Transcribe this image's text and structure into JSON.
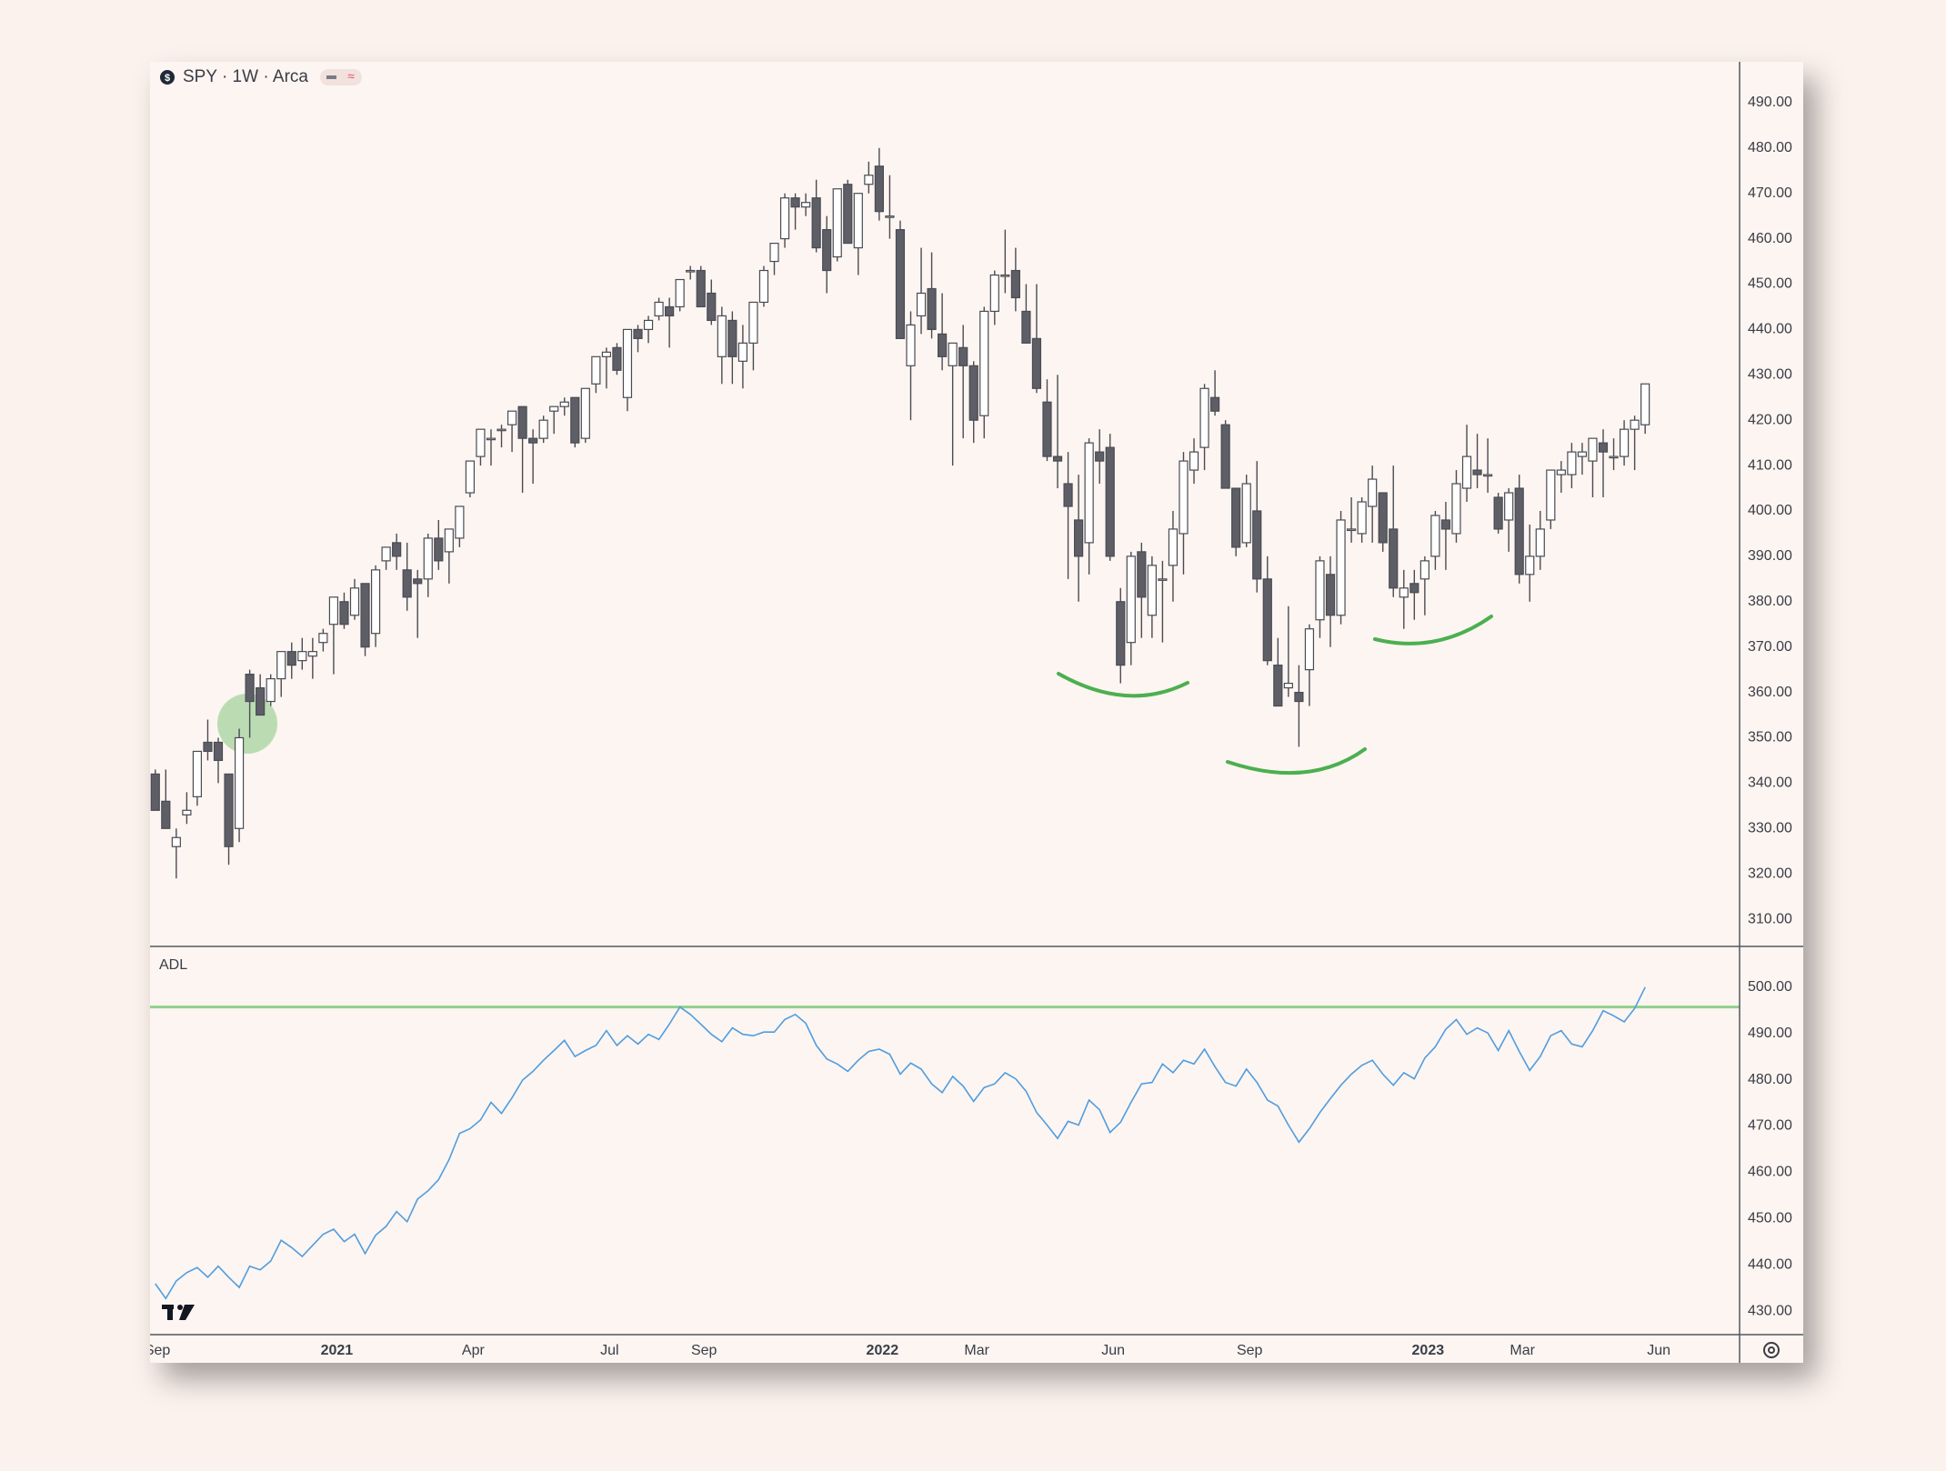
{
  "chart_data": [
    {
      "type": "candlestick",
      "title": "SPY · 1W · Arca",
      "up_color": "#ffffff",
      "down_color": "#5d5e66",
      "border_color": "#4a4b53",
      "xlim": [
        -0.5,
        151
      ],
      "ylim": [
        304,
        499
      ],
      "yticks": [
        {
          "value": 310,
          "label": "310.00"
        },
        {
          "value": 320,
          "label": "320.00"
        },
        {
          "value": 330,
          "label": "330.00"
        },
        {
          "value": 340,
          "label": "340.00"
        },
        {
          "value": 350,
          "label": "350.00"
        },
        {
          "value": 360,
          "label": "360.00"
        },
        {
          "value": 370,
          "label": "370.00"
        },
        {
          "value": 380,
          "label": "380.00"
        },
        {
          "value": 390,
          "label": "390.00"
        },
        {
          "value": 400,
          "label": "400.00"
        },
        {
          "value": 410,
          "label": "410.00"
        },
        {
          "value": 420,
          "label": "420.00"
        },
        {
          "value": 430,
          "label": "430.00"
        },
        {
          "value": 440,
          "label": "440.00"
        },
        {
          "value": 450,
          "label": "450.00"
        },
        {
          "value": 460,
          "label": "460.00"
        },
        {
          "value": 470,
          "label": "470.00"
        },
        {
          "value": 480,
          "label": "480.00"
        },
        {
          "value": 490,
          "label": "490.00"
        }
      ],
      "open": [
        342,
        336,
        326,
        333,
        337,
        349,
        349,
        342,
        330,
        364,
        361,
        358,
        363,
        369,
        367,
        368,
        371,
        375,
        380,
        377,
        384,
        373,
        389,
        393,
        387,
        385,
        385,
        394,
        391,
        394,
        404,
        412,
        416,
        418,
        419,
        423,
        416,
        416,
        422,
        423,
        425,
        416,
        428,
        434,
        436,
        425,
        440,
        440,
        443,
        445,
        445,
        453,
        453,
        448,
        434,
        442,
        433,
        437,
        446,
        455,
        460,
        469,
        467,
        469,
        462,
        456,
        472,
        458,
        472,
        476,
        465,
        462,
        432,
        443,
        449,
        439,
        432,
        436,
        432,
        421,
        444,
        452,
        453,
        444,
        438,
        424,
        412,
        406,
        398,
        393,
        413,
        414,
        380,
        371,
        391,
        377,
        385,
        388,
        395,
        409,
        414,
        425,
        419,
        405,
        393,
        400,
        385,
        366,
        361,
        360,
        365,
        376,
        386,
        377,
        396,
        395,
        401,
        404,
        396,
        381,
        384,
        385,
        390,
        398,
        395,
        405,
        409,
        408,
        403,
        398,
        405,
        386,
        390,
        398,
        408,
        408,
        412,
        411,
        415,
        412,
        412,
        418,
        419
      ],
      "high": [
        343,
        343,
        330,
        338,
        347,
        354,
        350,
        342,
        352,
        365,
        364,
        364,
        369,
        371,
        372,
        372,
        374,
        381,
        382,
        385,
        384,
        388,
        392,
        395,
        393,
        387,
        395,
        398,
        396,
        401,
        411,
        418,
        418,
        419,
        422,
        423,
        418,
        421,
        423,
        425,
        425,
        427,
        434,
        436,
        437,
        440,
        441,
        443,
        447,
        447,
        451,
        454,
        454,
        451,
        445,
        444,
        441,
        446,
        454,
        459,
        470,
        470,
        470,
        473,
        465,
        471,
        473,
        470,
        477,
        480,
        474,
        464,
        444,
        458,
        457,
        448,
        437,
        441,
        433,
        445,
        453,
        462,
        458,
        450,
        450,
        429,
        430,
        413,
        408,
        416,
        418,
        417,
        383,
        391,
        393,
        390,
        389,
        400,
        413,
        416,
        428,
        431,
        420,
        405,
        408,
        411,
        390,
        372,
        379,
        366,
        375,
        390,
        390,
        400,
        403,
        403,
        410,
        404,
        410,
        387,
        387,
        390,
        400,
        402,
        409,
        419,
        417,
        416,
        404,
        405,
        408,
        397,
        400,
        409,
        411,
        415,
        415,
        416,
        418,
        416,
        420,
        421,
        428
      ],
      "low": [
        334,
        330,
        319,
        331,
        335,
        345,
        340,
        322,
        327,
        350,
        355,
        357,
        359,
        363,
        365,
        363,
        369,
        364,
        374,
        376,
        368,
        370,
        387,
        387,
        378,
        372,
        381,
        387,
        384,
        392,
        403,
        410,
        410,
        414,
        413,
        404,
        406,
        415,
        417,
        421,
        414,
        415,
        426,
        427,
        430,
        422,
        435,
        437,
        442,
        436,
        444,
        451,
        445,
        441,
        428,
        428,
        427,
        431,
        445,
        452,
        458,
        462,
        465,
        457,
        448,
        455,
        460,
        452,
        470,
        464,
        460,
        438,
        420,
        439,
        438,
        431,
        410,
        416,
        415,
        416,
        441,
        448,
        444,
        437,
        426,
        411,
        405,
        385,
        380,
        386,
        406,
        389,
        362,
        366,
        372,
        372,
        371,
        380,
        386,
        406,
        409,
        421,
        405,
        390,
        392,
        382,
        366,
        357,
        359,
        348,
        357,
        372,
        370,
        375,
        393,
        393,
        393,
        391,
        381,
        374,
        376,
        377,
        387,
        387,
        393,
        402,
        405,
        404,
        395,
        391,
        384,
        380,
        387,
        396,
        404,
        405,
        408,
        403,
        403,
        409,
        410,
        409,
        417
      ],
      "close": [
        334,
        330,
        328,
        334,
        347,
        347,
        345,
        326,
        350,
        358,
        355,
        363,
        369,
        366,
        369,
        369,
        373,
        381,
        375,
        383,
        370,
        387,
        392,
        390,
        381,
        384,
        394,
        389,
        396,
        401,
        411,
        418,
        416,
        418,
        422,
        416,
        415,
        420,
        423,
        424,
        415,
        427,
        434,
        435,
        431,
        440,
        438,
        442,
        446,
        443,
        451,
        453,
        445,
        442,
        443,
        434,
        437,
        446,
        453,
        459,
        469,
        467,
        468,
        458,
        453,
        471,
        459,
        470,
        474,
        466,
        465,
        438,
        441,
        448,
        440,
        434,
        437,
        432,
        420,
        444,
        452,
        452,
        447,
        437,
        427,
        412,
        411,
        401,
        390,
        415,
        411,
        390,
        366,
        390,
        381,
        388,
        385,
        396,
        411,
        413,
        427,
        422,
        405,
        392,
        406,
        385,
        367,
        357,
        362,
        358,
        374,
        389,
        377,
        398,
        396,
        402,
        407,
        393,
        383,
        383,
        382,
        389,
        399,
        396,
        406,
        412,
        408,
        408,
        396,
        404,
        386,
        390,
        396,
        409,
        409,
        413,
        413,
        416,
        413,
        412,
        418,
        420,
        428
      ]
    },
    {
      "type": "line",
      "title": "ADL",
      "xlim": [
        -0.5,
        151
      ],
      "ylim": [
        424.9,
        508.8
      ],
      "yticks": [
        {
          "value": 430,
          "label": "430.00"
        },
        {
          "value": 440,
          "label": "440.00"
        },
        {
          "value": 450,
          "label": "450.00"
        },
        {
          "value": 460,
          "label": "460.00"
        },
        {
          "value": 470,
          "label": "470.00"
        },
        {
          "value": 480,
          "label": "480.00"
        },
        {
          "value": 490,
          "label": "490.00"
        },
        {
          "value": 500,
          "label": "500.00"
        }
      ],
      "xticks": [
        {
          "value": 0.2,
          "label": "Sep"
        },
        {
          "value": 17.3,
          "label": "2021"
        },
        {
          "value": 30.3,
          "label": "Apr"
        },
        {
          "value": 43.3,
          "label": "Jul"
        },
        {
          "value": 52.3,
          "label": "Sep"
        },
        {
          "value": 69.3,
          "label": "2022"
        },
        {
          "value": 78.3,
          "label": "Mar"
        },
        {
          "value": 91.3,
          "label": "Jun"
        },
        {
          "value": 104.3,
          "label": "Sep"
        },
        {
          "value": 121.3,
          "label": "2023"
        },
        {
          "value": 130.3,
          "label": "Mar"
        },
        {
          "value": 143.3,
          "label": "Jun"
        }
      ],
      "reference_line": {
        "value": 495.7,
        "color": "#8fd08a"
      },
      "color": "#4f9de0",
      "values": [
        435.9,
        432.7,
        436.5,
        438.3,
        439.4,
        437.3,
        439.7,
        437.3,
        435.1,
        439.7,
        438.9,
        440.8,
        445.3,
        443.7,
        441.8,
        444.2,
        446.6,
        447.7,
        445.0,
        446.6,
        442.4,
        446.4,
        448.3,
        451.5,
        449.3,
        454.2,
        456.0,
        458.4,
        462.7,
        468.4,
        469.4,
        471.3,
        475.1,
        472.7,
        476.1,
        479.9,
        481.8,
        484.2,
        486.3,
        488.5,
        485.0,
        486.3,
        487.4,
        490.6,
        487.4,
        489.5,
        487.7,
        489.8,
        488.7,
        492.0,
        495.7,
        494.1,
        492.0,
        489.8,
        488.2,
        491.2,
        489.8,
        489.5,
        490.3,
        490.3,
        493.0,
        494.1,
        492.2,
        487.4,
        484.5,
        483.4,
        481.8,
        484.2,
        486.1,
        486.6,
        485.5,
        481.2,
        483.6,
        482.3,
        479.1,
        477.2,
        480.7,
        478.6,
        475.3,
        478.3,
        479.1,
        481.5,
        480.2,
        477.5,
        472.9,
        470.2,
        467.3,
        471.0,
        470.2,
        475.6,
        473.5,
        468.6,
        470.8,
        475.1,
        479.1,
        479.4,
        483.4,
        481.5,
        484.2,
        483.4,
        486.6,
        482.8,
        479.4,
        478.6,
        482.3,
        479.4,
        475.6,
        474.3,
        470.2,
        466.5,
        469.4,
        472.9,
        475.9,
        478.8,
        481.2,
        483.1,
        484.2,
        481.2,
        478.8,
        481.5,
        480.2,
        484.7,
        487.1,
        490.9,
        493.0,
        489.8,
        491.2,
        490.1,
        486.3,
        490.6,
        486.1,
        482.0,
        485.0,
        489.5,
        490.6,
        487.7,
        487.1,
        490.6,
        494.9,
        493.8,
        492.5,
        495.4,
        500.0
      ]
    }
  ]
}
